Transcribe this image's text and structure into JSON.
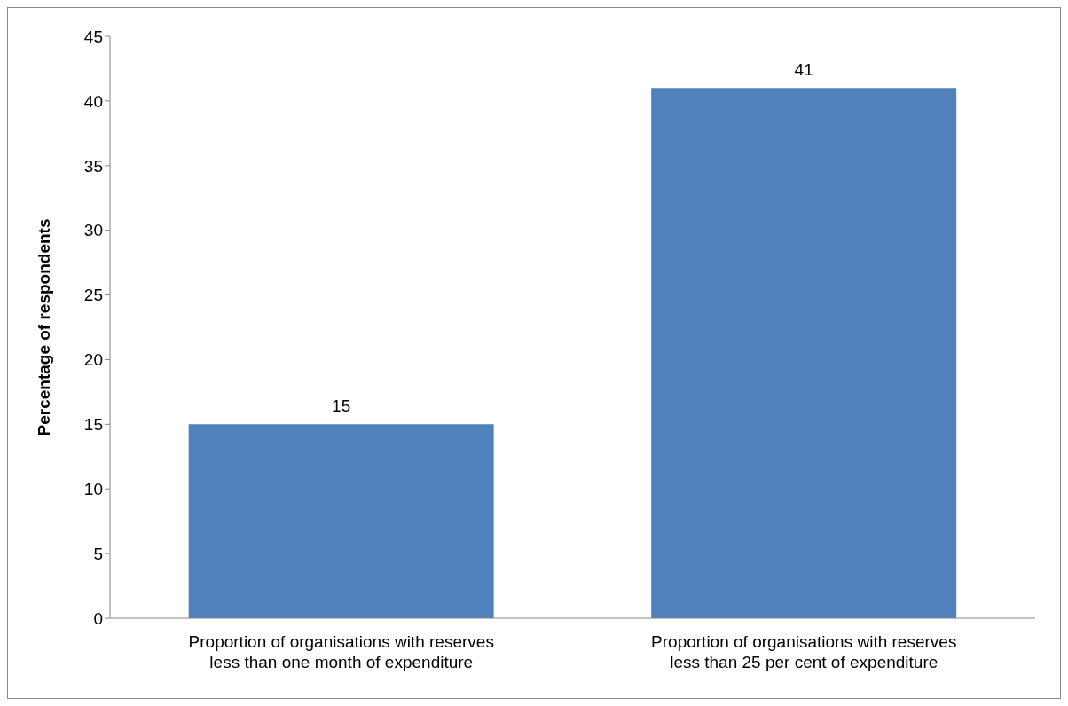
{
  "chart_data": {
    "type": "bar",
    "ylabel": "Percentage of respondents",
    "categories": [
      "Proportion of organisations with reserves less than one month of expenditure",
      "Proportion of organisations with reserves less than 25 per cent of expenditure"
    ],
    "values": [
      15,
      41
    ],
    "color": "#4f81bd",
    "ylim": [
      0,
      45
    ],
    "yticks": [
      0,
      5,
      10,
      15,
      20,
      25,
      30,
      35,
      40,
      45
    ],
    "grid": false,
    "data_labels": true
  }
}
